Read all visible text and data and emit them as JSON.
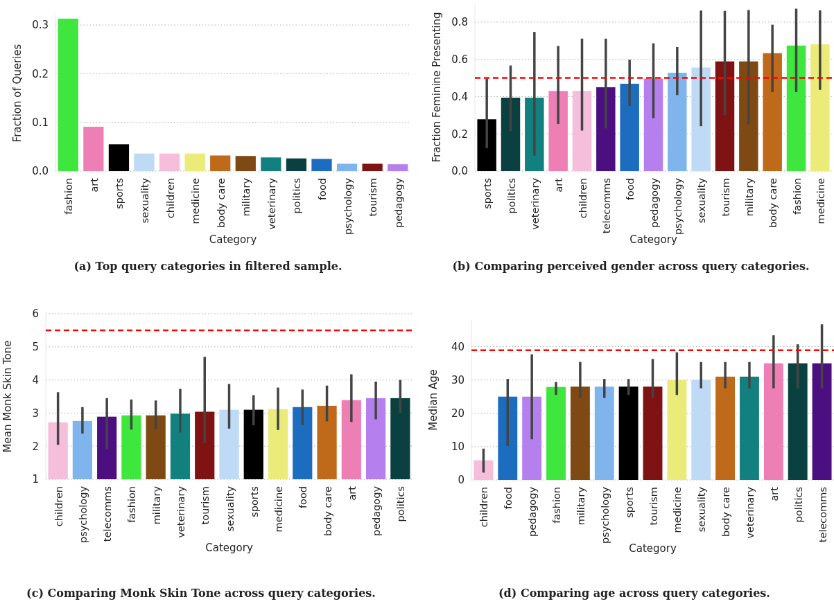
{
  "chart_data": [
    {
      "type": "bar",
      "xlabel": "Category",
      "ylabel": "Fraction of Queries",
      "categories": [
        "fashion",
        "art",
        "sports",
        "sexuality",
        "children",
        "medicine",
        "body care",
        "military",
        "veterinary",
        "politics",
        "food",
        "psychology",
        "tourism",
        "pedagogy"
      ],
      "values": [
        0.313,
        0.091,
        0.055,
        0.036,
        0.036,
        0.036,
        0.032,
        0.031,
        0.028,
        0.026,
        0.025,
        0.015,
        0.015,
        0.014
      ],
      "colors": [
        "#3ee63e",
        "#ee7fb5",
        "#000000",
        "#bfdaf5",
        "#f5bedb",
        "#ebeb7a",
        "#bf6a1b",
        "#7f4913",
        "#138080",
        "#0b4040",
        "#1c6dbf",
        "#80b4ed",
        "#7f1313",
        "#b580ed"
      ],
      "ylim": [
        0,
        0.32
      ],
      "yticks": [
        {
          "value": 0,
          "label": "0.0"
        },
        0.1,
        0.2,
        0.3
      ],
      "grid": "y",
      "annotations": [
        "(a) Top query categories in filtered sample."
      ]
    },
    {
      "type": "bar",
      "xlabel": "Category",
      "ylabel": "Fraction Feminine Presenting",
      "categories": [
        "sports",
        "politics",
        "veterinary",
        "art",
        "children",
        "telecomms",
        "food",
        "pedagogy",
        "psychology",
        "sexuality",
        "tourism",
        "military",
        "body care",
        "fashion",
        "medicine"
      ],
      "values": [
        0.278,
        0.394,
        0.394,
        0.43,
        0.43,
        0.45,
        0.469,
        0.496,
        0.528,
        0.556,
        0.589,
        0.589,
        0.633,
        0.674,
        0.681
      ],
      "errors": [
        [
          0.123,
          0.496
        ],
        [
          0.215,
          0.567
        ],
        [
          0.083,
          0.747
        ],
        [
          0.253,
          0.672
        ],
        [
          0.218,
          0.711
        ],
        [
          0.229,
          0.711
        ],
        [
          0.35,
          0.598
        ],
        [
          0.284,
          0.686
        ],
        [
          0.408,
          0.666
        ],
        [
          0.241,
          0.862
        ],
        [
          0.299,
          0.86
        ],
        [
          0.25,
          0.865
        ],
        [
          0.424,
          0.786
        ],
        [
          0.424,
          0.872
        ],
        [
          0.436,
          0.863
        ]
      ],
      "colors": [
        "#000000",
        "#0b4040",
        "#138080",
        "#ee7fb5",
        "#f5bedb",
        "#4b0f7f",
        "#1c6dbf",
        "#b580ed",
        "#80b4ed",
        "#bfdaf5",
        "#7f1313",
        "#7f4913",
        "#bf6a1b",
        "#3ee63e",
        "#ebeb7a"
      ],
      "ylim": [
        0,
        0.9
      ],
      "yticks": [
        {
          "value": 0,
          "label": "0.0"
        },
        0.2,
        0.4,
        0.6,
        0.8
      ],
      "grid": "y",
      "ref_lines": [
        {
          "axis": "y",
          "value": 0.5,
          "color": "#ff0000",
          "line_style": "dashed"
        }
      ],
      "annotations": [
        "(b) Comparing perceived gender across query categories."
      ]
    },
    {
      "type": "bar",
      "xlabel": "Category",
      "ylabel": "Mean Monk Skin Tone",
      "categories": [
        "children",
        "psychology",
        "telecomms",
        "fashion",
        "military",
        "veterinary",
        "tourism",
        "sexuality",
        "sports",
        "medicine",
        "food",
        "body care",
        "art",
        "pedagogy",
        "politics"
      ],
      "values": [
        2.72,
        2.76,
        2.89,
        2.93,
        2.93,
        2.98,
        3.04,
        3.1,
        3.1,
        3.12,
        3.18,
        3.22,
        3.39,
        3.45,
        3.45
      ],
      "errors": [
        [
          2.04,
          3.63
        ],
        [
          2.38,
          3.18
        ],
        [
          1.91,
          3.45
        ],
        [
          2.5,
          3.41
        ],
        [
          2.52,
          3.38
        ],
        [
          2.41,
          3.73
        ],
        [
          2.09,
          4.7
        ],
        [
          2.53,
          3.88
        ],
        [
          2.63,
          3.54
        ],
        [
          2.49,
          3.77
        ],
        [
          2.64,
          3.71
        ],
        [
          2.75,
          3.83
        ],
        [
          2.73,
          4.17
        ],
        [
          2.81,
          3.95
        ],
        [
          3.01,
          4.0
        ]
      ],
      "colors": [
        "#f5bedb",
        "#80b4ed",
        "#4b0f7f",
        "#3ee63e",
        "#7f4913",
        "#138080",
        "#7f1313",
        "#bfdaf5",
        "#000000",
        "#ebeb7a",
        "#1c6dbf",
        "#bf6a1b",
        "#ee7fb5",
        "#b580ed",
        "#0b4040"
      ],
      "ylim": [
        1,
        6
      ],
      "yticks": [
        1,
        2,
        3,
        4,
        5,
        6
      ],
      "grid": "y",
      "ref_lines": [
        {
          "axis": "y",
          "value": 5.5,
          "color": "#ff0000",
          "line_style": "dashed"
        }
      ],
      "annotations": [
        "(c) Comparing Monk Skin Tone across query categories."
      ]
    },
    {
      "type": "bar",
      "xlabel": "Category",
      "ylabel": "Median Age",
      "categories": [
        "children",
        "food",
        "pedagogy",
        "fashion",
        "military",
        "psychology",
        "sports",
        "tourism",
        "medicine",
        "sexuality",
        "body care",
        "veterinary",
        "art",
        "politics",
        "telecomms"
      ],
      "values": [
        5.9,
        25,
        25,
        27.9,
        28,
        28,
        28,
        28,
        30,
        30,
        31,
        31,
        35,
        35,
        35
      ],
      "errors": [
        [
          2.2,
          9.4
        ],
        [
          10.2,
          30.3
        ],
        [
          12.2,
          37.7
        ],
        [
          25.5,
          29.4
        ],
        [
          24.6,
          35.4
        ],
        [
          24.6,
          30.3
        ],
        [
          25.5,
          30.3
        ],
        [
          24.6,
          36.3
        ],
        [
          25.5,
          38.3
        ],
        [
          27.5,
          35.4
        ],
        [
          27.5,
          35.4
        ],
        [
          27.5,
          35.4
        ],
        [
          27.5,
          43.4
        ],
        [
          27.5,
          40.7
        ],
        [
          27.5,
          46.7
        ]
      ],
      "colors": [
        "#f5bedb",
        "#1c6dbf",
        "#b580ed",
        "#3ee63e",
        "#7f4913",
        "#80b4ed",
        "#000000",
        "#7f1313",
        "#ebeb7a",
        "#bfdaf5",
        "#bf6a1b",
        "#138080",
        "#ee7fb5",
        "#0b4040",
        "#4b0f7f"
      ],
      "ylim": [
        0,
        48
      ],
      "yticks": [
        0,
        10,
        20,
        30,
        40
      ],
      "grid": "y",
      "ref_lines": [
        {
          "axis": "y",
          "value": 38.9,
          "color": "#ff0000",
          "line_style": "dashed"
        }
      ],
      "annotations": [
        "(d) Comparing age across query categories."
      ]
    }
  ]
}
